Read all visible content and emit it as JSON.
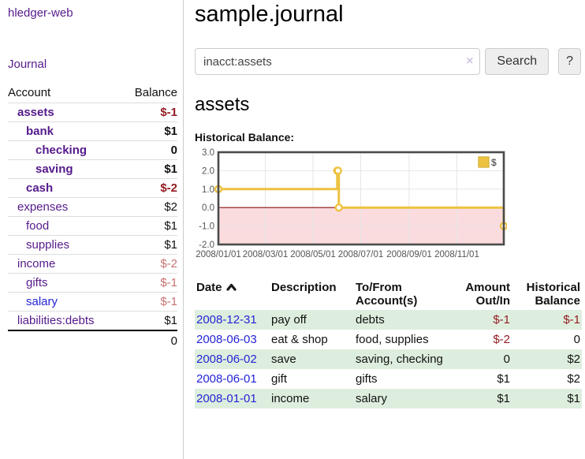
{
  "app": {
    "brand": "hledger-web",
    "nav_journal": "Journal"
  },
  "sidebar": {
    "header": {
      "account": "Account",
      "balance": "Balance"
    },
    "accounts": [
      {
        "name": "assets",
        "balance": "$-1",
        "depth": 1,
        "bold": true
      },
      {
        "name": "bank",
        "balance": "$1",
        "depth": 2,
        "bold": true
      },
      {
        "name": "checking",
        "balance": "0",
        "depth": 3,
        "bold": true
      },
      {
        "name": "saving",
        "balance": "$1",
        "depth": 3,
        "bold": true
      },
      {
        "name": "cash",
        "balance": "$-2",
        "depth": 2,
        "bold": true
      },
      {
        "name": "expenses",
        "balance": "$2",
        "depth": 1,
        "bold": false
      },
      {
        "name": "food",
        "balance": "$1",
        "depth": 2,
        "bold": false
      },
      {
        "name": "supplies",
        "balance": "$1",
        "depth": 2,
        "bold": false
      },
      {
        "name": "income",
        "balance": "$-2",
        "depth": 1,
        "bold": false
      },
      {
        "name": "gifts",
        "balance": "$-1",
        "depth": 2,
        "bold": false
      },
      {
        "name": "salary",
        "balance": "$-1",
        "depth": 2,
        "bold": false,
        "blue": true
      },
      {
        "name": "liabilities:debts",
        "balance": "$1",
        "depth": 1,
        "bold": false
      }
    ],
    "total": "0"
  },
  "header": {
    "title": "sample.journal"
  },
  "search": {
    "value": "inacct:assets",
    "clear_icon": "×",
    "button_label": "Search",
    "help_label": "?"
  },
  "account_page": {
    "title": "assets",
    "chart_label": "Historical Balance:"
  },
  "chart_data": {
    "type": "line",
    "step": true,
    "title": "Historical Balance:",
    "series": [
      {
        "name": "$",
        "color": "#edc240",
        "points": [
          [
            "2008-01-01",
            1
          ],
          [
            "2008-06-01",
            2
          ],
          [
            "2008-06-02",
            2
          ],
          [
            "2008-06-03",
            0
          ],
          [
            "2008-12-31",
            -1
          ]
        ]
      }
    ],
    "xrange": [
      "2008-01-01",
      "2008-12-31"
    ],
    "ylim": [
      -2,
      3
    ],
    "yticks": [
      "3.0",
      "2.0",
      "1.0",
      "0.0",
      "-1.0",
      "-2.0"
    ],
    "ytick_values": [
      3,
      2,
      1,
      0,
      -1,
      -2
    ],
    "xticks": [
      "2008/01/01",
      "2008/03/01",
      "2008/05/01",
      "2008/07/01",
      "2008/09/01",
      "2008/11/01"
    ],
    "grid": true,
    "legend_position": "top-right",
    "legend_label": "$",
    "colors": {
      "line": "#edc240",
      "marker_fill": "#ffffff",
      "negative_fill": "#fbdcde",
      "zero_line": "#8b0f0f",
      "border": "#4a4a4a",
      "gridline": "#e6e6e6",
      "tick_text": "#545454"
    }
  },
  "register": {
    "columns": [
      "Date",
      "Description",
      "To/From Account(s)",
      "Amount Out/In",
      "Historical Balance"
    ],
    "rows": [
      {
        "date": "2008-12-31",
        "description": "pay off",
        "accounts": "debts",
        "amount": "$-1",
        "balance": "$-1"
      },
      {
        "date": "2008-06-03",
        "description": "eat & shop",
        "accounts": "food, supplies",
        "amount": "$-2",
        "balance": "0"
      },
      {
        "date": "2008-06-02",
        "description": "save",
        "accounts": "saving, checking",
        "amount": "0",
        "balance": "$2"
      },
      {
        "date": "2008-06-01",
        "description": "gift",
        "accounts": "gifts",
        "amount": "$1",
        "balance": "$2"
      },
      {
        "date": "2008-01-01",
        "description": "income",
        "accounts": "salary",
        "amount": "$1",
        "balance": "$1"
      }
    ]
  }
}
